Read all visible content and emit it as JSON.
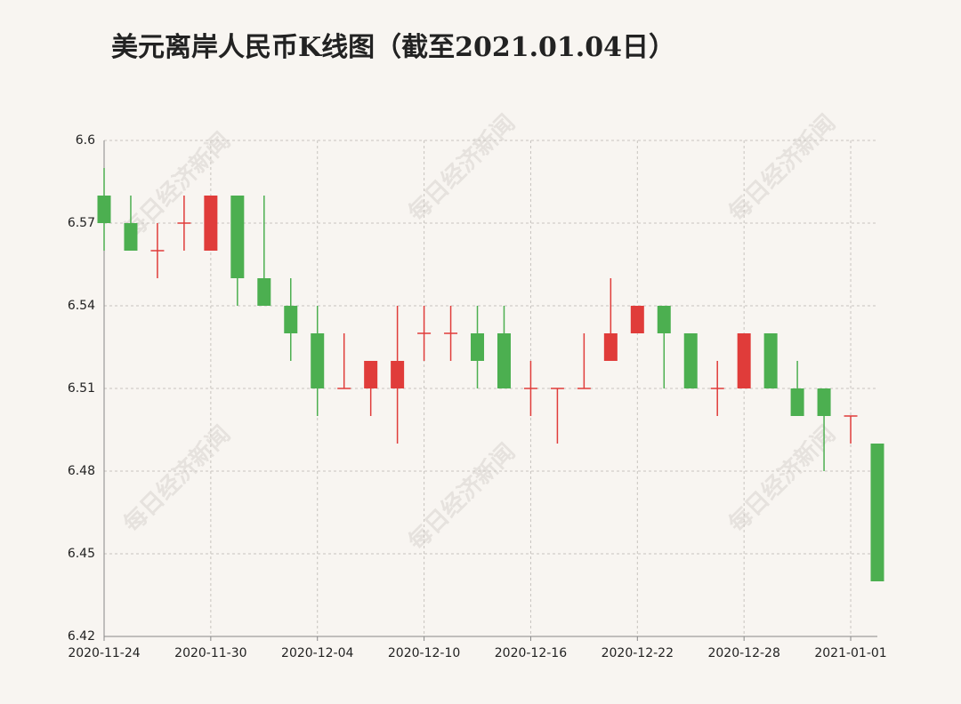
{
  "chart_data": {
    "type": "candlestick",
    "title": "美元离岸人民币K线图（截至2021.01.04日）",
    "watermark": "每日经济新闻",
    "categories": [
      "2020-11-24",
      null,
      null,
      null,
      "2020-11-30",
      null,
      null,
      null,
      "2020-12-04",
      null,
      null,
      null,
      "2020-12-10",
      null,
      null,
      null,
      "2020-12-16",
      null,
      null,
      null,
      "2020-12-22",
      null,
      null,
      null,
      "2020-12-28",
      null,
      null,
      null,
      "2021-01-01",
      null
    ],
    "open": [
      6.58,
      6.57,
      6.56,
      6.57,
      6.56,
      6.58,
      6.55,
      6.54,
      6.53,
      6.51,
      6.51,
      6.51,
      6.53,
      6.53,
      6.53,
      6.53,
      6.51,
      6.51,
      6.51,
      6.52,
      6.53,
      6.54,
      6.53,
      6.51,
      6.51,
      6.53,
      6.51,
      6.51,
      6.5,
      6.49
    ],
    "high": [
      6.59,
      6.58,
      6.57,
      6.58,
      6.58,
      6.58,
      6.58,
      6.55,
      6.54,
      6.53,
      6.52,
      6.54,
      6.54,
      6.54,
      6.54,
      6.54,
      6.52,
      6.51,
      6.53,
      6.55,
      6.54,
      6.54,
      6.53,
      6.52,
      6.53,
      6.53,
      6.52,
      6.51,
      6.5,
      6.49
    ],
    "low": [
      6.56,
      6.56,
      6.55,
      6.56,
      6.56,
      6.54,
      6.54,
      6.52,
      6.5,
      6.51,
      6.5,
      6.49,
      6.52,
      6.52,
      6.51,
      6.51,
      6.5,
      6.49,
      6.51,
      6.52,
      6.53,
      6.51,
      6.51,
      6.5,
      6.51,
      6.51,
      6.5,
      6.48,
      6.49,
      6.44
    ],
    "close": [
      6.57,
      6.56,
      6.56,
      6.57,
      6.58,
      6.55,
      6.54,
      6.53,
      6.51,
      6.51,
      6.52,
      6.52,
      6.53,
      6.53,
      6.52,
      6.51,
      6.51,
      6.51,
      6.51,
      6.53,
      6.54,
      6.53,
      6.51,
      6.51,
      6.53,
      6.51,
      6.5,
      6.5,
      6.5,
      6.44
    ],
    "up_color": "#e03c3a",
    "down_color": "#4caf50",
    "ylim": [
      6.42,
      6.6
    ],
    "yticks": [
      6.42,
      6.45,
      6.48,
      6.51,
      6.54,
      6.57,
      6.6
    ],
    "grid": true
  }
}
